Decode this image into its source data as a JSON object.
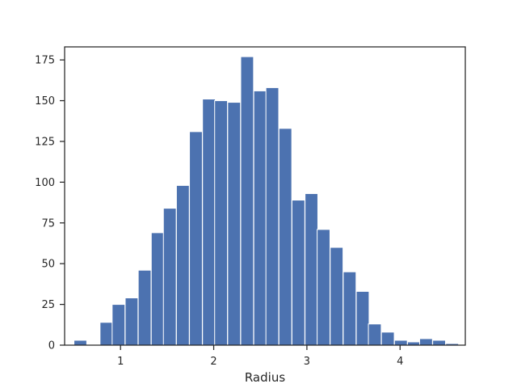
{
  "chart_data": {
    "type": "bar",
    "title": "",
    "xlabel": "Radius",
    "ylabel": "",
    "xlim": [
      0.4,
      4.7
    ],
    "ylim": [
      0,
      183
    ],
    "grid": false,
    "bar_color": "#4c72b0",
    "bin_width": 0.1375,
    "xticks": [
      1,
      2,
      3,
      4
    ],
    "yticks": [
      0,
      25,
      50,
      75,
      100,
      125,
      150,
      175
    ],
    "bins": [
      {
        "x0": 0.5,
        "value": 3
      },
      {
        "x0": 0.64,
        "value": 0
      },
      {
        "x0": 0.78,
        "value": 14
      },
      {
        "x0": 0.91,
        "value": 25
      },
      {
        "x0": 1.05,
        "value": 29
      },
      {
        "x0": 1.19,
        "value": 46
      },
      {
        "x0": 1.33,
        "value": 69
      },
      {
        "x0": 1.46,
        "value": 84
      },
      {
        "x0": 1.6,
        "value": 98
      },
      {
        "x0": 1.74,
        "value": 131
      },
      {
        "x0": 1.88,
        "value": 151
      },
      {
        "x0": 2.01,
        "value": 150
      },
      {
        "x0": 2.15,
        "value": 149
      },
      {
        "x0": 2.29,
        "value": 177
      },
      {
        "x0": 2.43,
        "value": 156
      },
      {
        "x0": 2.56,
        "value": 158
      },
      {
        "x0": 2.7,
        "value": 133
      },
      {
        "x0": 2.84,
        "value": 89
      },
      {
        "x0": 2.98,
        "value": 93
      },
      {
        "x0": 3.11,
        "value": 71
      },
      {
        "x0": 3.25,
        "value": 60
      },
      {
        "x0": 3.39,
        "value": 45
      },
      {
        "x0": 3.53,
        "value": 33
      },
      {
        "x0": 3.66,
        "value": 13
      },
      {
        "x0": 3.8,
        "value": 8
      },
      {
        "x0": 3.94,
        "value": 3
      },
      {
        "x0": 4.08,
        "value": 2
      },
      {
        "x0": 4.21,
        "value": 4
      },
      {
        "x0": 4.35,
        "value": 3
      },
      {
        "x0": 4.49,
        "value": 1
      }
    ]
  }
}
